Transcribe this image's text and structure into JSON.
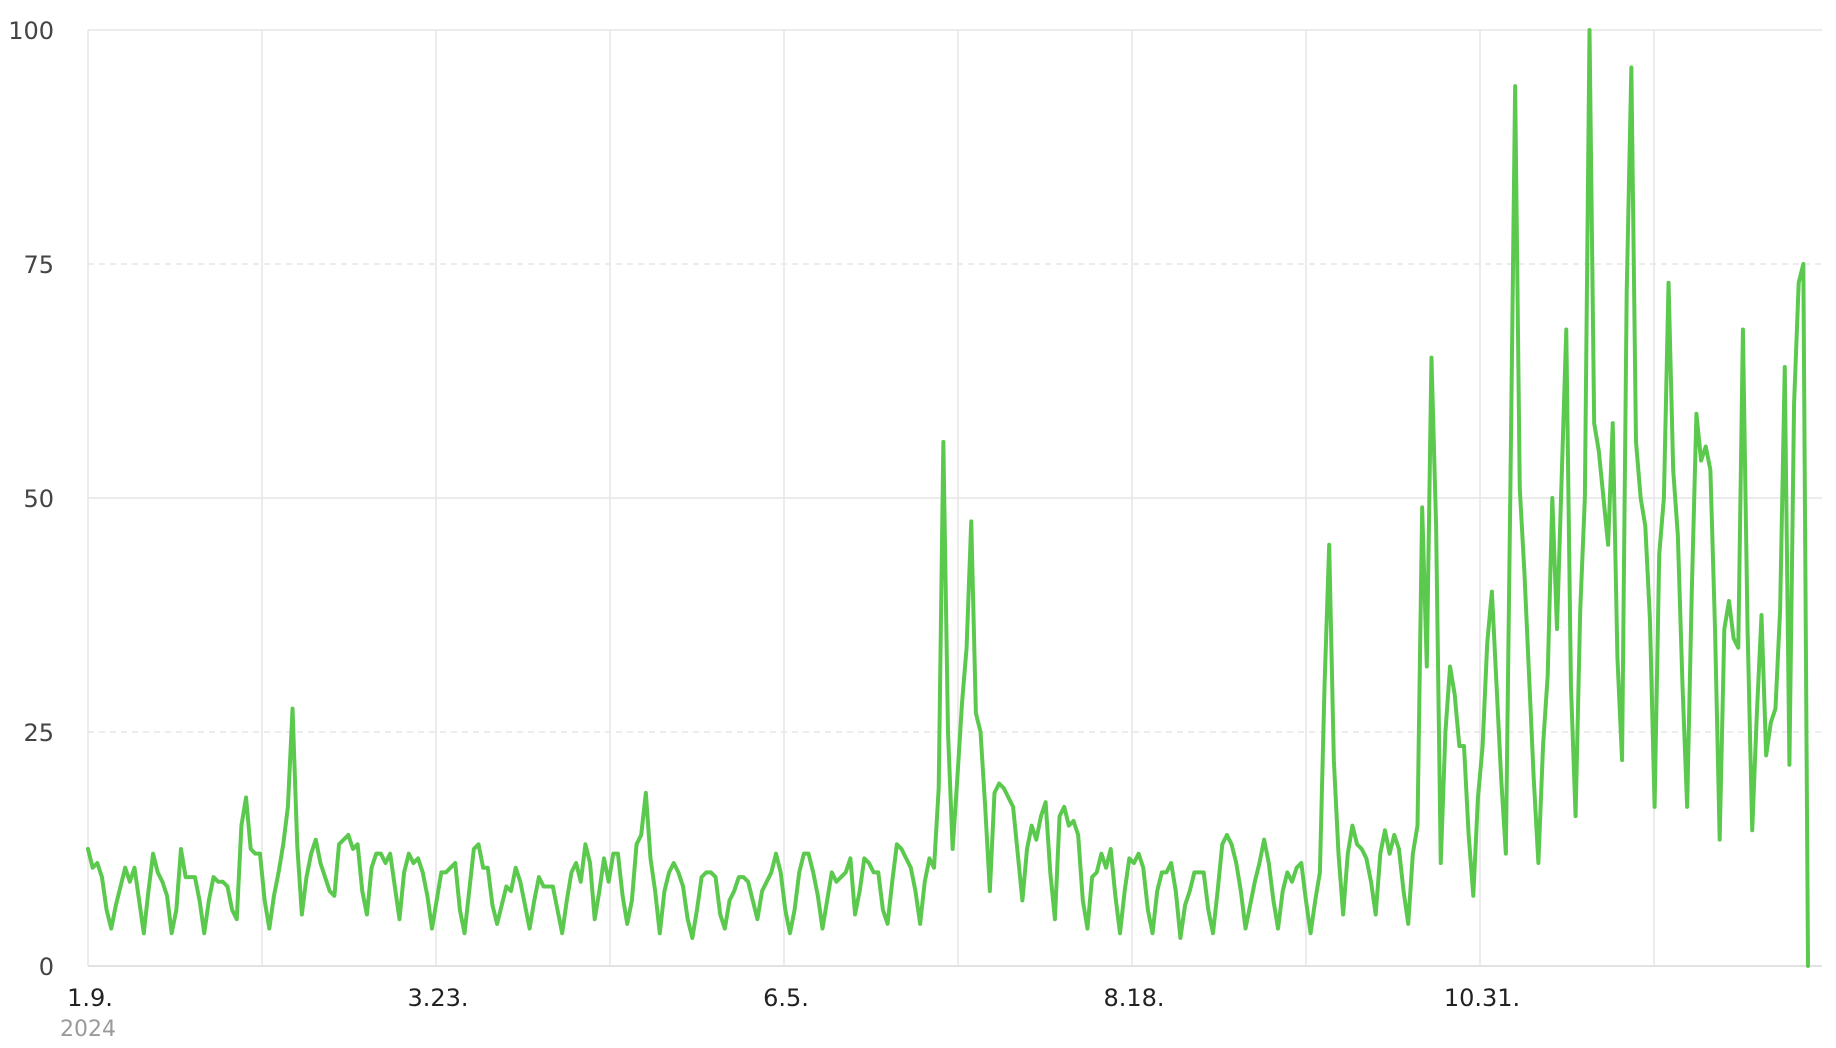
{
  "chart_data": {
    "type": "line",
    "title": "",
    "xlabel": "",
    "ylabel": "",
    "ylim": [
      0,
      100
    ],
    "y_ticks": [
      "0",
      "25",
      "50",
      "75",
      "100"
    ],
    "x_ticks": [
      "1.9.",
      "3.23.",
      "6.5.",
      "8.18.",
      "10.31."
    ],
    "year_label": "2024",
    "grid": true,
    "series": [
      {
        "color": "#5bc94e",
        "values": [
          12.5,
          10.5,
          11,
          9.5,
          6,
          4,
          6.5,
          8.5,
          10.5,
          9,
          10.5,
          7,
          3.5,
          8,
          12,
          10,
          9,
          7.5,
          3.5,
          6,
          12.5,
          9.5,
          9.5,
          9.5,
          7,
          3.5,
          7,
          9.5,
          9,
          9,
          8.5,
          6,
          5,
          15,
          18,
          12.5,
          12,
          12,
          7,
          4,
          7.5,
          10,
          13,
          17,
          27.5,
          13,
          5.5,
          9.5,
          12,
          13.5,
          11,
          9.5,
          8,
          7.5,
          13,
          13.5,
          14,
          12.5,
          13,
          8,
          5.5,
          10.5,
          12,
          12,
          11,
          12,
          8.5,
          5,
          10,
          12,
          11,
          11.5,
          10,
          7.5,
          4,
          7,
          10,
          10,
          10.5,
          11,
          6,
          3.5,
          8,
          12.5,
          13,
          10.5,
          10.5,
          6.5,
          4.5,
          6.5,
          8.5,
          8,
          10.5,
          9,
          6.5,
          4,
          7,
          9.5,
          8.5,
          8.5,
          8.5,
          6,
          3.5,
          7,
          10,
          11,
          9,
          13,
          11,
          5,
          8,
          11.5,
          9,
          12,
          12,
          7.5,
          4.5,
          7,
          13,
          14,
          18.5,
          11.5,
          8,
          3.5,
          8,
          10,
          11,
          10,
          8.5,
          5,
          3,
          6,
          9.5,
          10,
          10,
          9.5,
          5.5,
          4,
          7,
          8,
          9.5,
          9.5,
          9,
          7,
          5,
          8,
          9,
          10,
          12,
          10,
          6,
          3.5,
          6,
          10,
          12,
          12,
          10,
          7.5,
          4,
          7,
          10,
          9,
          9.5,
          10,
          11.5,
          5.5,
          8,
          11.5,
          11,
          10,
          10,
          6,
          4.5,
          9,
          13,
          12.5,
          11.5,
          10.5,
          8,
          4.5,
          9,
          11.5,
          10.5,
          19,
          56,
          25,
          12.5,
          20,
          28,
          34,
          47.5,
          27,
          25,
          17,
          8,
          18.5,
          19.5,
          19,
          18,
          17,
          12,
          7,
          12.5,
          15,
          13.5,
          16,
          17.5,
          10,
          5,
          16,
          17,
          15,
          15.5,
          14,
          7,
          4,
          9.5,
          10,
          12,
          10.5,
          12.5,
          7.5,
          3.5,
          8,
          11.5,
          11,
          12,
          10.5,
          6,
          3.5,
          8,
          10,
          10,
          11,
          8,
          3,
          6.5,
          8,
          10,
          10,
          10,
          6,
          3.5,
          8,
          13,
          14,
          13,
          11,
          8,
          4,
          6.5,
          9,
          11,
          13.5,
          11,
          7,
          4,
          8,
          10,
          9,
          10.5,
          11,
          7,
          3.5,
          7,
          10,
          30,
          45,
          22,
          12,
          5.5,
          12,
          15,
          13,
          12.5,
          11.5,
          9,
          5.5,
          12,
          14.5,
          12,
          14,
          12.5,
          8,
          4.5,
          12,
          15,
          49,
          32,
          65,
          47,
          11,
          25,
          32,
          29,
          23.5,
          23.5,
          14,
          7.5,
          18,
          23.5,
          34.5,
          40,
          30,
          20,
          12,
          52,
          94,
          51,
          42,
          31,
          20,
          11,
          23.5,
          31,
          50,
          36,
          52,
          68,
          30,
          16,
          38,
          50,
          100,
          58,
          55,
          50,
          45,
          58,
          33,
          22,
          72,
          96,
          56,
          50,
          47,
          37,
          17,
          44,
          50,
          73,
          53,
          46,
          30,
          17,
          40,
          59,
          54,
          55.5,
          53,
          36,
          13.5,
          36,
          39,
          35,
          34,
          68,
          36,
          14.5,
          27,
          37.5,
          22.5,
          26,
          27.5,
          38,
          64,
          21.5,
          60,
          73,
          75,
          0
        ]
      }
    ]
  }
}
